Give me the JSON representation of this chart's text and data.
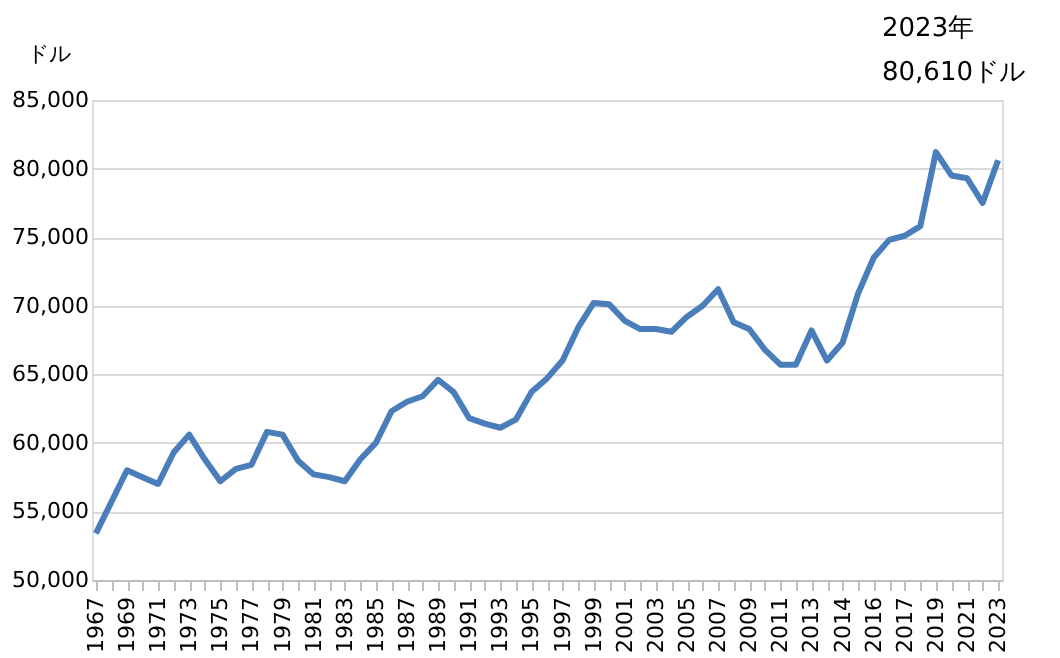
{
  "chart_data": {
    "type": "line",
    "ylabel": "ドル",
    "categories": [
      "1967",
      null,
      "1969",
      null,
      "1971",
      null,
      "1973",
      null,
      "1975",
      null,
      "1977",
      null,
      "1979",
      null,
      "1981",
      null,
      "1983",
      null,
      "1985",
      null,
      "1987",
      null,
      "1989",
      null,
      "1991",
      null,
      "1993",
      null,
      "1995",
      null,
      "1997",
      null,
      "1999",
      null,
      "2001",
      null,
      "2003",
      null,
      "2005",
      null,
      "2007",
      null,
      "2009",
      null,
      "2011",
      null,
      "2013",
      null,
      "2014",
      null,
      "2016",
      null,
      "2017",
      null,
      "2019",
      null,
      "2021",
      null,
      "2023"
    ],
    "series": [
      {
        "color": "#4a7ebb",
        "values": [
          53400,
          55700,
          58000,
          57500,
          57000,
          59300,
          60600,
          58800,
          57200,
          58100,
          58400,
          60800,
          60600,
          58700,
          57700,
          57500,
          57200,
          58800,
          60000,
          62300,
          63000,
          63400,
          64600,
          63700,
          61800,
          61400,
          61100,
          61700,
          63700,
          64700,
          66000,
          68400,
          70200,
          70100,
          68900,
          68300,
          68300,
          68100,
          69200,
          70000,
          71200,
          68800,
          68300,
          66800,
          65700,
          65700,
          68200,
          66000,
          67300,
          70900,
          73500,
          74800,
          75100,
          75800,
          81200,
          79500,
          79300,
          77500,
          80610
        ]
      }
    ],
    "ylim": [
      50000,
      85000
    ],
    "yticks": [
      {
        "value": 50000,
        "label": "50,000"
      },
      {
        "value": 55000,
        "label": "55,000"
      },
      {
        "value": 60000,
        "label": "60,000"
      },
      {
        "value": 65000,
        "label": "65,000"
      },
      {
        "value": 70000,
        "label": "70,000"
      },
      {
        "value": 75000,
        "label": "75,000"
      },
      {
        "value": 80000,
        "label": "80,000"
      },
      {
        "value": 85000,
        "label": "85,000"
      }
    ],
    "grid": "y",
    "marker": "none",
    "line_style": "solid",
    "annotations": [
      "2023年",
      "80,610ドル"
    ]
  }
}
